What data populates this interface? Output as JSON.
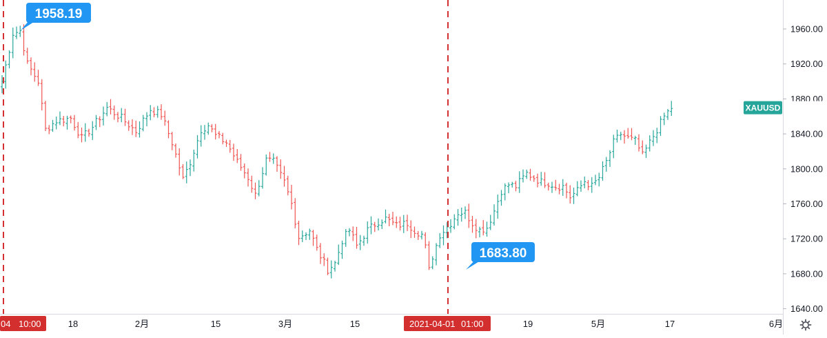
{
  "chart_data": {
    "type": "ohlc",
    "symbol": "XAUUSD",
    "ylim": [
      1625,
      2000
    ],
    "y_ticks": [
      "1960.00",
      "1920.00",
      "1880.00",
      "1840.00",
      "1800.00",
      "1760.00",
      "1720.00",
      "1680.00",
      "1640.00"
    ],
    "x_ticks": [
      "18",
      "2月",
      "15",
      "3月",
      "15",
      "19",
      "5月",
      "17",
      "6月"
    ],
    "x_start_label": "04",
    "x_start_time": "10:00",
    "marker_date": "2021-04-01",
    "marker_time": "01:00",
    "current_price_label": "XAUUSD",
    "current_price": 1870,
    "annotations": [
      {
        "label": "1958.19",
        "value": 1958.19
      },
      {
        "label": "1683.80",
        "value": 1683.8
      }
    ],
    "colors": {
      "up": "#26a69a",
      "down": "#ef5350",
      "marker": "#d32f2f",
      "callout": "#2196f3",
      "symbol_badge": "#26a69a"
    },
    "anchors": [
      [
        0,
        1900
      ],
      [
        3,
        1955
      ],
      [
        5,
        1958
      ],
      [
        7,
        1920
      ],
      [
        10,
        1900
      ],
      [
        12,
        1845
      ],
      [
        15,
        1855
      ],
      [
        19,
        1858
      ],
      [
        22,
        1835
      ],
      [
        25,
        1848
      ],
      [
        29,
        1870
      ],
      [
        33,
        1858
      ],
      [
        37,
        1843
      ],
      [
        41,
        1868
      ],
      [
        44,
        1862
      ],
      [
        47,
        1830
      ],
      [
        50,
        1788
      ],
      [
        52,
        1808
      ],
      [
        55,
        1845
      ],
      [
        57,
        1850
      ],
      [
        59,
        1838
      ],
      [
        62,
        1830
      ],
      [
        65,
        1808
      ],
      [
        68,
        1790
      ],
      [
        70,
        1770
      ],
      [
        73,
        1810
      ],
      [
        75,
        1808
      ],
      [
        78,
        1785
      ],
      [
        80,
        1760
      ],
      [
        82,
        1722
      ],
      [
        85,
        1730
      ],
      [
        87,
        1708
      ],
      [
        90,
        1685
      ],
      [
        92,
        1692
      ],
      [
        94,
        1718
      ],
      [
        96,
        1730
      ],
      [
        98,
        1712
      ],
      [
        101,
        1730
      ],
      [
        104,
        1740
      ],
      [
        106,
        1743
      ],
      [
        109,
        1735
      ],
      [
        112,
        1738
      ],
      [
        114,
        1730
      ],
      [
        116,
        1725
      ],
      [
        117,
        1710
      ],
      [
        118,
        1684
      ],
      [
        119,
        1700
      ],
      [
        121,
        1725
      ],
      [
        124,
        1738
      ],
      [
        126,
        1750
      ],
      [
        128,
        1750
      ],
      [
        130,
        1738
      ],
      [
        132,
        1730
      ],
      [
        134,
        1733
      ],
      [
        136,
        1752
      ],
      [
        138,
        1775
      ],
      [
        140,
        1782
      ],
      [
        142,
        1780
      ],
      [
        145,
        1795
      ],
      [
        147,
        1790
      ],
      [
        149,
        1785
      ],
      [
        151,
        1784
      ],
      [
        153,
        1780
      ],
      [
        155,
        1780
      ],
      [
        157,
        1768
      ],
      [
        159,
        1775
      ],
      [
        161,
        1786
      ],
      [
        163,
        1780
      ],
      [
        165,
        1790
      ],
      [
        167,
        1808
      ],
      [
        169,
        1830
      ],
      [
        171,
        1840
      ],
      [
        173,
        1835
      ],
      [
        175,
        1832
      ],
      [
        177,
        1815
      ],
      [
        179,
        1830
      ],
      [
        181,
        1845
      ],
      [
        183,
        1860
      ],
      [
        185,
        1870
      ]
    ]
  }
}
